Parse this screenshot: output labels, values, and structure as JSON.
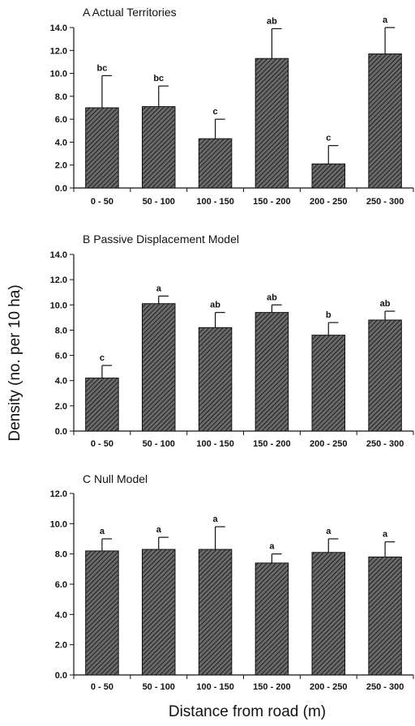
{
  "ylabel": "Density (no. per 10 ha)",
  "xlabel": "Distance from road (m)",
  "chart_data": [
    {
      "type": "bar",
      "title": "A   Actual Territories",
      "categories": [
        "0 - 50",
        "50 - 100",
        "100 - 150",
        "150 - 200",
        "200 - 250",
        "250 - 300"
      ],
      "values": [
        7.0,
        7.1,
        4.3,
        11.3,
        2.1,
        11.7
      ],
      "error": [
        2.8,
        1.8,
        1.7,
        2.6,
        1.6,
        2.3
      ],
      "significance": [
        "bc",
        "bc",
        "c",
        "ab",
        "c",
        "a"
      ],
      "ylim": [
        0,
        14
      ],
      "yticks": [
        "0.0",
        "2.0",
        "4.0",
        "6.0",
        "8.0",
        "10.0",
        "12.0",
        "14.0"
      ],
      "grid": false,
      "bar_color": "#555555"
    },
    {
      "type": "bar",
      "title": "B   Passive Displacement Model",
      "categories": [
        "0 - 50",
        "50 - 100",
        "100 - 150",
        "150 - 200",
        "200 - 250",
        "250 - 300"
      ],
      "values": [
        4.2,
        10.1,
        8.2,
        9.4,
        7.6,
        8.8
      ],
      "error": [
        1.0,
        0.6,
        1.2,
        0.6,
        1.0,
        0.7
      ],
      "significance": [
        "c",
        "a",
        "ab",
        "ab",
        "b",
        "ab"
      ],
      "ylim": [
        0,
        14
      ],
      "yticks": [
        "0.0",
        "2.0",
        "4.0",
        "6.0",
        "8.0",
        "10.0",
        "12.0",
        "14.0"
      ],
      "grid": false,
      "bar_color": "#555555"
    },
    {
      "type": "bar",
      "title": "C   Null Model",
      "categories": [
        "0 - 50",
        "50 - 100",
        "100 - 150",
        "150 - 200",
        "200 - 250",
        "250 - 300"
      ],
      "values": [
        8.2,
        8.3,
        8.3,
        7.4,
        8.1,
        7.8
      ],
      "error": [
        0.8,
        0.8,
        1.5,
        0.6,
        0.9,
        1.0
      ],
      "significance": [
        "a",
        "a",
        "a",
        "a",
        "a",
        "a"
      ],
      "ylim": [
        0,
        12
      ],
      "yticks": [
        "0.0",
        "2.0",
        "4.0",
        "6.0",
        "8.0",
        "10.0",
        "12.0"
      ],
      "grid": false,
      "bar_color": "#555555"
    }
  ]
}
